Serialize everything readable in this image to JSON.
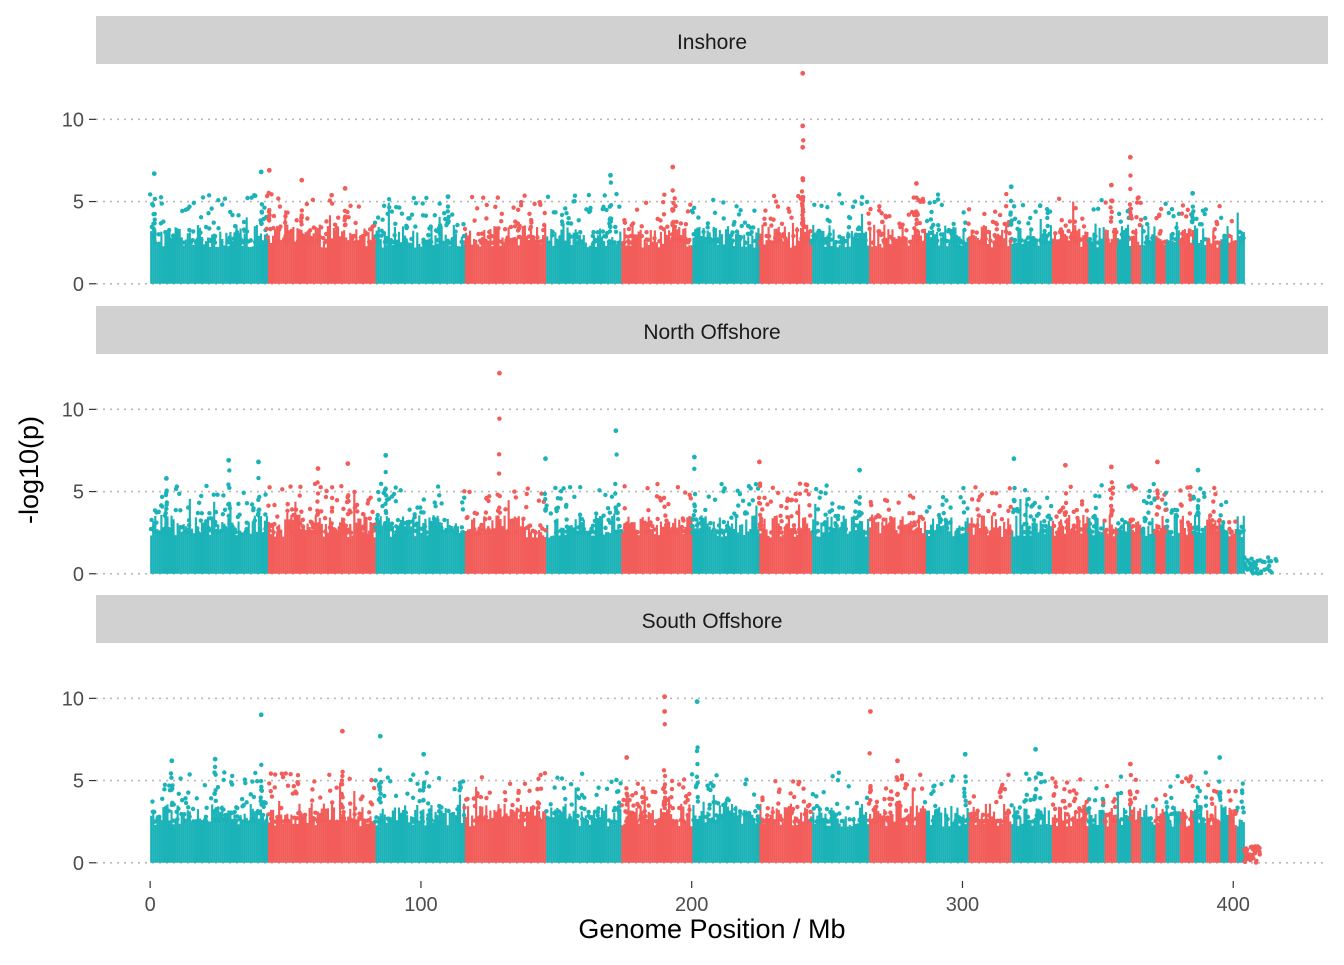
{
  "chart_data": {
    "type": "scatter",
    "xlabel": "Genome Position / Mb",
    "ylabel": "-log10(p)",
    "xlim": [
      -20,
      435
    ],
    "ylim": [
      -0.5,
      13
    ],
    "x_ticks": [
      0,
      100,
      200,
      300,
      400
    ],
    "y_ticks": [
      0,
      5,
      10
    ],
    "grid": "horizontal dotted",
    "legend": "none",
    "colors": {
      "odd_chromosome": "#1bb3b8",
      "even_chromosome": "#f25d5a",
      "strip_fill": "#d1d1d1",
      "grid": "#b8b8b8"
    },
    "chromosome_boundaries_mb": [
      0,
      43,
      83,
      116,
      146,
      174,
      200,
      225,
      244,
      265,
      286,
      302,
      318,
      333,
      346,
      352,
      357,
      362,
      366,
      371,
      375,
      380,
      385,
      390,
      395,
      398,
      401,
      404
    ],
    "panels": [
      {
        "name": "Inshore",
        "extent_mb": 404,
        "peaks": [
          {
            "x": 1.5,
            "y": 6.7
          },
          {
            "x": 41,
            "y": 6.8
          },
          {
            "x": 44,
            "y": 6.9
          },
          {
            "x": 56,
            "y": 6.3
          },
          {
            "x": 72,
            "y": 5.8
          },
          {
            "x": 110,
            "y": 5.3
          },
          {
            "x": 170,
            "y": 6.6
          },
          {
            "x": 193,
            "y": 7.1
          },
          {
            "x": 241,
            "y": 12.8
          },
          {
            "x": 241,
            "y": 9.6
          },
          {
            "x": 241,
            "y": 8.3
          },
          {
            "x": 241,
            "y": 6.4
          },
          {
            "x": 283,
            "y": 6.1
          },
          {
            "x": 318,
            "y": 5.9
          },
          {
            "x": 362,
            "y": 7.7
          },
          {
            "x": 355,
            "y": 6.0
          },
          {
            "x": 385,
            "y": 5.5
          }
        ]
      },
      {
        "name": "North Offshore",
        "extent_mb": 416,
        "peaks": [
          {
            "x": 6,
            "y": 5.8
          },
          {
            "x": 29,
            "y": 6.9
          },
          {
            "x": 40,
            "y": 6.8
          },
          {
            "x": 62,
            "y": 6.4
          },
          {
            "x": 73,
            "y": 6.7
          },
          {
            "x": 87,
            "y": 7.2
          },
          {
            "x": 129,
            "y": 12.2
          },
          {
            "x": 146,
            "y": 7.0
          },
          {
            "x": 172,
            "y": 8.7
          },
          {
            "x": 201,
            "y": 7.1
          },
          {
            "x": 225,
            "y": 6.8
          },
          {
            "x": 262,
            "y": 6.3
          },
          {
            "x": 319,
            "y": 7.0
          },
          {
            "x": 338,
            "y": 6.6
          },
          {
            "x": 355,
            "y": 6.5
          },
          {
            "x": 372,
            "y": 6.8
          },
          {
            "x": 387,
            "y": 6.3
          }
        ]
      },
      {
        "name": "South Offshore",
        "extent_mb": 410,
        "peaks": [
          {
            "x": 8,
            "y": 6.2
          },
          {
            "x": 24,
            "y": 6.3
          },
          {
            "x": 41,
            "y": 9.0
          },
          {
            "x": 71,
            "y": 8.0
          },
          {
            "x": 85,
            "y": 7.7
          },
          {
            "x": 101,
            "y": 6.6
          },
          {
            "x": 176,
            "y": 6.4
          },
          {
            "x": 190,
            "y": 10.1
          },
          {
            "x": 190,
            "y": 9.2
          },
          {
            "x": 202,
            "y": 9.8
          },
          {
            "x": 266,
            "y": 9.2
          },
          {
            "x": 276,
            "y": 6.2
          },
          {
            "x": 301,
            "y": 6.6
          },
          {
            "x": 327,
            "y": 6.9
          },
          {
            "x": 362,
            "y": 6.0
          },
          {
            "x": 395,
            "y": 6.4
          }
        ]
      }
    ]
  }
}
